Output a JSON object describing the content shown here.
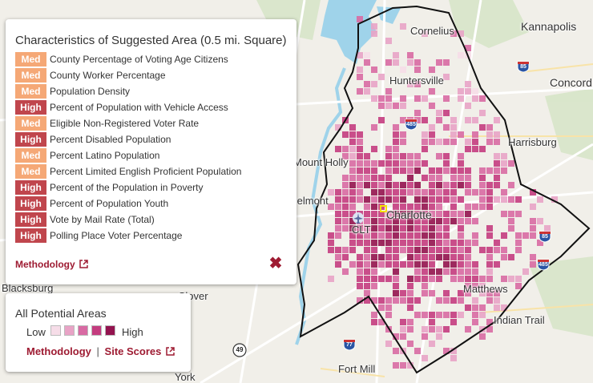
{
  "map": {
    "labels": [
      {
        "text": "Kannapolis",
        "size": "big"
      },
      {
        "text": "Concord",
        "size": "big"
      },
      {
        "text": "Harrisburg",
        "size": "normal"
      },
      {
        "text": "Cornelius",
        "size": "normal"
      },
      {
        "text": "Huntersville",
        "size": "normal"
      },
      {
        "text": "Mount Holly",
        "size": "normal"
      },
      {
        "text": "Belmont",
        "size": "normal"
      },
      {
        "text": "CLT",
        "size": "normal"
      },
      {
        "text": "Charlotte",
        "size": "big"
      },
      {
        "text": "Matthews",
        "size": "normal"
      },
      {
        "text": "Indian Trail",
        "size": "normal"
      },
      {
        "text": "Blacksburg",
        "size": "normal"
      },
      {
        "text": "Clover",
        "size": "normal"
      },
      {
        "text": "Fort Mill",
        "size": "normal"
      },
      {
        "text": "York",
        "size": "normal"
      }
    ],
    "shields": [
      "85",
      "85",
      "485",
      "485",
      "77",
      "49"
    ],
    "colors": {
      "water": "#9fd3ea",
      "land": "#f1efe9",
      "green": "#d4e4c4",
      "road": "#ffffff",
      "road_minor": "#f8e3a8",
      "county_border": "#111111",
      "tiles": [
        "#f6dde8",
        "#e8a3c6",
        "#d86aa3",
        "#c43c7f",
        "#93134f"
      ]
    }
  },
  "characteristics": {
    "title": "Characteristics of Suggested Area (0.5 mi. Square)",
    "rows": [
      {
        "level": "Med",
        "label": "County Percentage of Voting Age Citizens"
      },
      {
        "level": "Med",
        "label": "County Worker Percentage"
      },
      {
        "level": "Med",
        "label": "Population Density"
      },
      {
        "level": "High",
        "label": "Percent of Population with Vehicle Access"
      },
      {
        "level": "Med",
        "label": "Eligible Non-Registered Voter Rate"
      },
      {
        "level": "High",
        "label": "Percent Disabled Population"
      },
      {
        "level": "Med",
        "label": "Percent Latino Population"
      },
      {
        "level": "Med",
        "label": "Percent Limited English Proficient Population"
      },
      {
        "level": "High",
        "label": "Percent of the Population in Poverty"
      },
      {
        "level": "High",
        "label": "Percent of Population Youth"
      },
      {
        "level": "High",
        "label": "Vote by Mail Rate (Total)"
      },
      {
        "level": "High",
        "label": "Polling Place Voter Percentage"
      }
    ],
    "methodology_label": "Methodology",
    "close_symbol": "✖"
  },
  "legend": {
    "title": "All Potential Areas",
    "low_label": "Low",
    "high_label": "High",
    "methodology_label": "Methodology",
    "separator": "|",
    "site_scores_label": "Site Scores"
  }
}
